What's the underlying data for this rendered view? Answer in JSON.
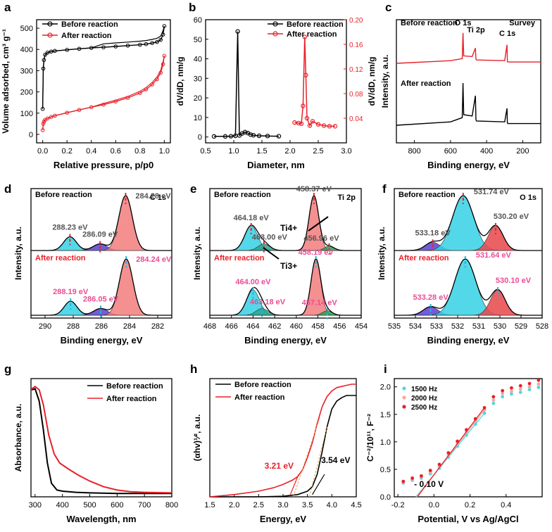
{
  "chart_data": [
    {
      "panel": "a",
      "type": "line",
      "xlabel": "Relative pressure, p/p0",
      "ylabel": "Volume adsorbed, cm³ g⁻¹",
      "xlim": [
        -0.05,
        1.05
      ],
      "ylim": [
        -40,
        540
      ],
      "xticks": [
        0.0,
        0.2,
        0.4,
        0.6,
        0.8,
        1.0
      ],
      "yticks": [
        0,
        100,
        200,
        300,
        400,
        500
      ],
      "series": [
        {
          "name": "Before reaction",
          "color": "#000000",
          "x": [
            0.0,
            0.005,
            0.01,
            0.02,
            0.04,
            0.07,
            0.1,
            0.2,
            0.3,
            0.4,
            0.5,
            0.6,
            0.7,
            0.8,
            0.85,
            0.9,
            0.94,
            0.97,
            0.99,
            1.0
          ],
          "y": [
            120,
            310,
            350,
            375,
            385,
            390,
            393,
            398,
            403,
            407,
            410,
            414,
            418,
            422,
            425,
            430,
            435,
            445,
            470,
            510
          ]
        },
        {
          "name": "After reaction",
          "color": "#e8212a",
          "x": [
            0.0,
            0.005,
            0.01,
            0.02,
            0.04,
            0.07,
            0.1,
            0.2,
            0.3,
            0.4,
            0.5,
            0.6,
            0.7,
            0.8,
            0.85,
            0.9,
            0.94,
            0.97,
            0.99,
            1.0
          ],
          "y": [
            20,
            50,
            60,
            68,
            75,
            82,
            88,
            102,
            115,
            128,
            140,
            155,
            172,
            195,
            212,
            235,
            260,
            290,
            330,
            370
          ]
        }
      ]
    },
    {
      "panel": "b",
      "type": "line",
      "xlabel": "Diameter, nm",
      "ylabel": "dV/dD, nm/g",
      "ylabel2": "dV/dD, nm/g",
      "xlim": [
        0.5,
        3.0
      ],
      "ylim": [
        -3,
        60
      ],
      "ylim2": [
        0,
        0.2
      ],
      "xticks": [
        0.5,
        1.0,
        1.5,
        2.0,
        2.5,
        3.0
      ],
      "yticks": [
        0,
        10,
        20,
        30,
        40,
        50,
        60
      ],
      "y2ticks": [
        0.04,
        0.08,
        0.12,
        0.16,
        0.2
      ],
      "series": [
        {
          "name": "Before reaction",
          "color": "#000000",
          "axis": "left",
          "x": [
            0.65,
            0.85,
            0.95,
            1.03,
            1.07,
            1.1,
            1.15,
            1.2,
            1.25,
            1.3,
            1.35,
            1.45,
            1.6,
            1.8
          ],
          "y": [
            0.3,
            0.3,
            0.4,
            0.6,
            54,
            0.8,
            1.8,
            2.5,
            2.0,
            1.2,
            0.9,
            0.6,
            0.5,
            0.4
          ]
        },
        {
          "name": "After reaction",
          "color": "#e8212a",
          "axis": "right",
          "x": [
            2.08,
            2.15,
            2.2,
            2.23,
            2.26,
            2.28,
            2.3,
            2.35,
            2.4,
            2.5,
            2.6,
            2.7,
            2.8
          ],
          "y": [
            0.033,
            0.032,
            0.031,
            0.06,
            0.172,
            0.11,
            0.04,
            0.028,
            0.035,
            0.03,
            0.028,
            0.027,
            0.027
          ]
        }
      ]
    },
    {
      "panel": "c",
      "type": "line",
      "title": "Survey",
      "xlabel": "Binding energy, eV",
      "ylabel": "Intensity, a.u.",
      "xlim": [
        900,
        100
      ],
      "xticks": [
        800,
        600,
        400,
        200
      ],
      "peaks": [
        "O 1s",
        "Ti 2p",
        "C 1s"
      ],
      "series": [
        {
          "name": "Before reaction",
          "color": "#e8212a",
          "x": [
            900,
            600,
            535,
            531,
            527,
            480,
            462,
            459,
            456,
            300,
            287,
            285,
            283,
            100
          ],
          "y": [
            0,
            0.08,
            0.14,
            0.9,
            0.22,
            0.2,
            0.45,
            0.12,
            0.1,
            0.08,
            0.55,
            0.06,
            0.04,
            0.04
          ]
        },
        {
          "name": "After reaction",
          "color": "#000000",
          "x": [
            900,
            600,
            535,
            531,
            527,
            480,
            462,
            459,
            456,
            300,
            287,
            285,
            283,
            100
          ],
          "y": [
            0,
            0.08,
            0.18,
            1.0,
            0.25,
            0.22,
            0.7,
            0.13,
            0.1,
            0.08,
            0.4,
            0.06,
            0.04,
            0.04
          ]
        }
      ]
    },
    {
      "panel": "d",
      "type": "area",
      "title": "C 1s",
      "xlabel": "Binding energy, eV",
      "ylabel": "Intensity, a.u.",
      "xlim": [
        291,
        281
      ],
      "xticks": [
        290,
        288,
        286,
        284,
        282
      ],
      "before": {
        "label": "Before reaction",
        "peaks": [
          288.23,
          286.09,
          284.28
        ],
        "peak_labels": [
          "288.23 eV",
          "286.09 eV",
          "284.28 eV"
        ]
      },
      "after": {
        "label": "After reaction",
        "peaks": [
          288.19,
          286.05,
          284.24
        ],
        "peak_labels": [
          "288.19 eV",
          "286.05 eV",
          "284.24 eV"
        ]
      }
    },
    {
      "panel": "e",
      "type": "area",
      "title": "Ti 2p",
      "xlabel": "Binding energy, eV",
      "ylabel": "Intensity, a.u.",
      "xlim": [
        468,
        454
      ],
      "xticks": [
        468,
        466,
        464,
        462,
        460,
        458,
        456,
        454
      ],
      "species": [
        "Ti4+",
        "Ti3+"
      ],
      "before": {
        "label": "Before reaction",
        "peaks": [
          464.18,
          463.0,
          458.37,
          456.96
        ],
        "peak_labels": [
          "464.18 eV",
          "463.00 eV",
          "458.37 eV",
          "456.96 eV"
        ]
      },
      "after": {
        "label": "After reaction",
        "peaks": [
          464.0,
          463.18,
          458.19,
          457.14
        ],
        "peak_labels": [
          "464.00 eV",
          "463.18 eV",
          "458.19 eV",
          "457.14 eV"
        ]
      }
    },
    {
      "panel": "f",
      "type": "area",
      "title": "O 1s",
      "xlabel": "Binding energy, eV",
      "ylabel": "Intensity, a.u.",
      "xlim": [
        535,
        528
      ],
      "xticks": [
        535,
        534,
        533,
        532,
        531,
        530,
        529,
        528
      ],
      "before": {
        "label": "Before reaction",
        "peaks": [
          533.18,
          531.74,
          530.2
        ],
        "peak_labels": [
          "533.18 eV",
          "531.74 eV",
          "530.20 eV"
        ]
      },
      "after": {
        "label": "After reaction",
        "peaks": [
          533.28,
          531.64,
          530.1
        ],
        "peak_labels": [
          "533.28 eV",
          "531.64 eV",
          "530.10 eV"
        ]
      }
    },
    {
      "panel": "g",
      "type": "line",
      "xlabel": "Wavelength, nm",
      "ylabel": "Absorbance, a.u.",
      "xlim": [
        285,
        800
      ],
      "ylim": [
        0,
        1.05
      ],
      "xticks": [
        300,
        400,
        500,
        600,
        700,
        800
      ],
      "series": [
        {
          "name": "Before reaction",
          "color": "#000000",
          "x": [
            288,
            300,
            315,
            330,
            345,
            360,
            380,
            400,
            450,
            500,
            600,
            700,
            800
          ],
          "y": [
            0.95,
            0.96,
            0.85,
            0.6,
            0.3,
            0.12,
            0.06,
            0.05,
            0.04,
            0.035,
            0.03,
            0.03,
            0.03
          ]
        },
        {
          "name": "After reaction",
          "color": "#e8212a",
          "x": [
            288,
            300,
            315,
            330,
            350,
            370,
            390,
            420,
            460,
            500,
            550,
            600,
            650,
            700,
            800
          ],
          "y": [
            0.96,
            0.98,
            0.95,
            0.82,
            0.55,
            0.38,
            0.3,
            0.25,
            0.19,
            0.14,
            0.09,
            0.06,
            0.045,
            0.04,
            0.035
          ]
        }
      ]
    },
    {
      "panel": "h",
      "type": "line",
      "xlabel": "Energy, eV",
      "ylabel": "(αhv)¹⁄², a.u.",
      "xlim": [
        1.5,
        4.5
      ],
      "ylim": [
        0,
        1.05
      ],
      "xticks": [
        1.5,
        2.0,
        2.5,
        3.0,
        3.5,
        4.0,
        4.5
      ],
      "annotations": [
        "3.21 eV",
        "3.54 eV"
      ],
      "series": [
        {
          "name": "Before reaction",
          "color": "#000000",
          "x": [
            1.5,
            2.5,
            3.0,
            3.3,
            3.5,
            3.6,
            3.7,
            3.8,
            3.9,
            4.0,
            4.1,
            4.2,
            4.3,
            4.4,
            4.5
          ],
          "y": [
            0.0,
            0.0,
            0.005,
            0.02,
            0.05,
            0.09,
            0.2,
            0.4,
            0.62,
            0.78,
            0.85,
            0.88,
            0.9,
            0.9,
            0.9
          ]
        },
        {
          "name": "After reaction",
          "color": "#e8212a",
          "x": [
            1.5,
            2.0,
            2.5,
            2.8,
            3.0,
            3.2,
            3.3,
            3.4,
            3.5,
            3.6,
            3.7,
            3.8,
            3.9,
            4.0,
            4.1,
            4.2,
            4.3,
            4.4,
            4.5
          ],
          "y": [
            0.0,
            0.02,
            0.05,
            0.08,
            0.11,
            0.15,
            0.18,
            0.24,
            0.35,
            0.48,
            0.65,
            0.8,
            0.89,
            0.94,
            0.97,
            0.98,
            0.99,
            1.0,
            1.0
          ]
        }
      ]
    },
    {
      "panel": "i",
      "type": "scatter",
      "xlabel": "Potential, V vs Ag/AgCl",
      "ylabel": "C⁻²/10¹¹, F⁻²",
      "xlim": [
        -0.22,
        0.6
      ],
      "ylim": [
        0,
        2.15
      ],
      "xticks": [
        -0.2,
        0.0,
        0.2,
        0.4
      ],
      "yticks": [
        0.0,
        0.5,
        1.0,
        1.5,
        2.0
      ],
      "annotation": "- 0.10 V",
      "x": [
        -0.17,
        -0.12,
        -0.07,
        -0.02,
        0.03,
        0.08,
        0.13,
        0.18,
        0.23,
        0.28,
        0.33,
        0.38,
        0.43,
        0.48,
        0.53,
        0.58
      ],
      "series": [
        {
          "name": "1500 Hz",
          "color": "#4fd8e0",
          "y": [
            0.25,
            0.3,
            0.34,
            0.42,
            0.52,
            0.72,
            0.92,
            1.12,
            1.32,
            1.52,
            1.7,
            1.82,
            1.87,
            1.9,
            1.95,
            1.99
          ]
        },
        {
          "name": "2000 Hz",
          "color": "#f4a7a0",
          "y": [
            0.27,
            0.32,
            0.36,
            0.45,
            0.56,
            0.76,
            0.97,
            1.18,
            1.38,
            1.58,
            1.76,
            1.88,
            1.92,
            1.96,
            2.0,
            2.05
          ]
        },
        {
          "name": "2500 Hz",
          "color": "#e8212a",
          "y": [
            0.28,
            0.34,
            0.38,
            0.48,
            0.59,
            0.8,
            1.01,
            1.22,
            1.42,
            1.62,
            1.82,
            1.93,
            1.98,
            2.02,
            2.06,
            2.12
          ]
        }
      ]
    }
  ]
}
